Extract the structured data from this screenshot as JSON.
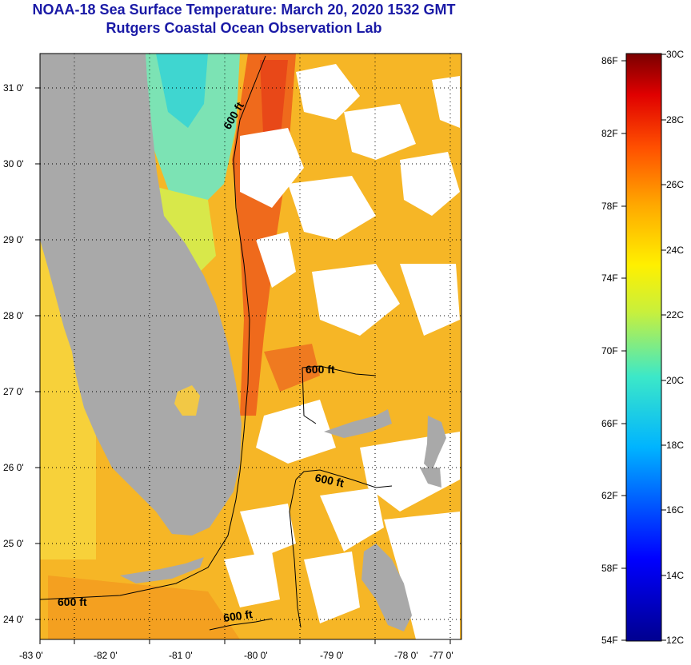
{
  "header": {
    "title": "NOAA-18 Sea Surface Temperature:  March 20, 2020 1532 GMT",
    "subtitle": "Rutgers Coastal Ocean Observation Lab"
  },
  "map": {
    "lon_ticks": [
      "-83 0'",
      "-82 0'",
      "-81 0'",
      "-80 0'",
      "-79 0'",
      "-78 0'",
      "-77 0'"
    ],
    "lat_ticks": [
      "31 0'",
      "30 0'",
      "29 0'",
      "28 0'",
      "27 0'",
      "26 0'",
      "25 0'",
      "24 0'"
    ],
    "contour_labels": [
      "600 ft",
      "600 ft",
      "600 ft",
      "600 ft",
      "600 ft"
    ],
    "land_color": "#a9a9a9",
    "no_data_color": "#ffffff"
  },
  "colorbar": {
    "fahrenheit_labels": [
      "86F",
      "82F",
      "78F",
      "74F",
      "70F",
      "66F",
      "62F",
      "58F",
      "54F"
    ],
    "celsius_labels": [
      "30C",
      "28C",
      "26C",
      "24C",
      "22C",
      "20C",
      "18C",
      "16C",
      "14C",
      "12C"
    ],
    "range_celsius": [
      12,
      30
    ]
  }
}
